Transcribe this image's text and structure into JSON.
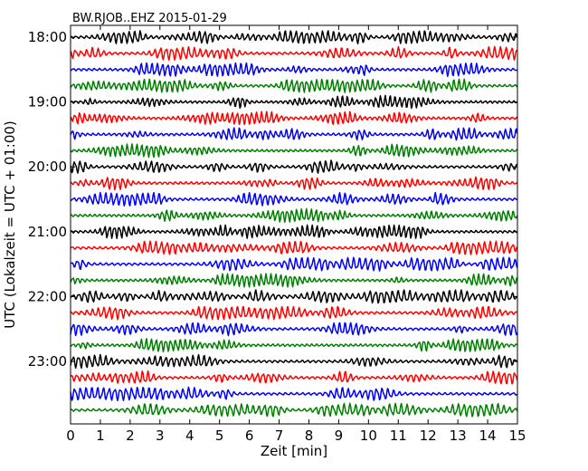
{
  "chart_data": {
    "type": "line",
    "subtype": "helicorder",
    "title": "BW.RJOB..EHZ 2015-01-29",
    "xlabel": "Zeit  [min]",
    "ylabel": "UTC (Lokalzeit = UTC + 01:00)",
    "xlim": [
      0,
      15
    ],
    "x_ticks": [
      "0",
      "1",
      "2",
      "3",
      "4",
      "5",
      "6",
      "7",
      "8",
      "9",
      "10",
      "11",
      "12",
      "13",
      "14",
      "15"
    ],
    "y_tick_labels": [
      "18:00",
      "19:00",
      "20:00",
      "21:00",
      "22:00",
      "23:00"
    ],
    "trace_count": 24,
    "minutes_per_trace": 15,
    "trace_colors": [
      "#000000",
      "#ff0000",
      "#0000ff",
      "#008000"
    ],
    "grid": false,
    "legend": "none"
  }
}
